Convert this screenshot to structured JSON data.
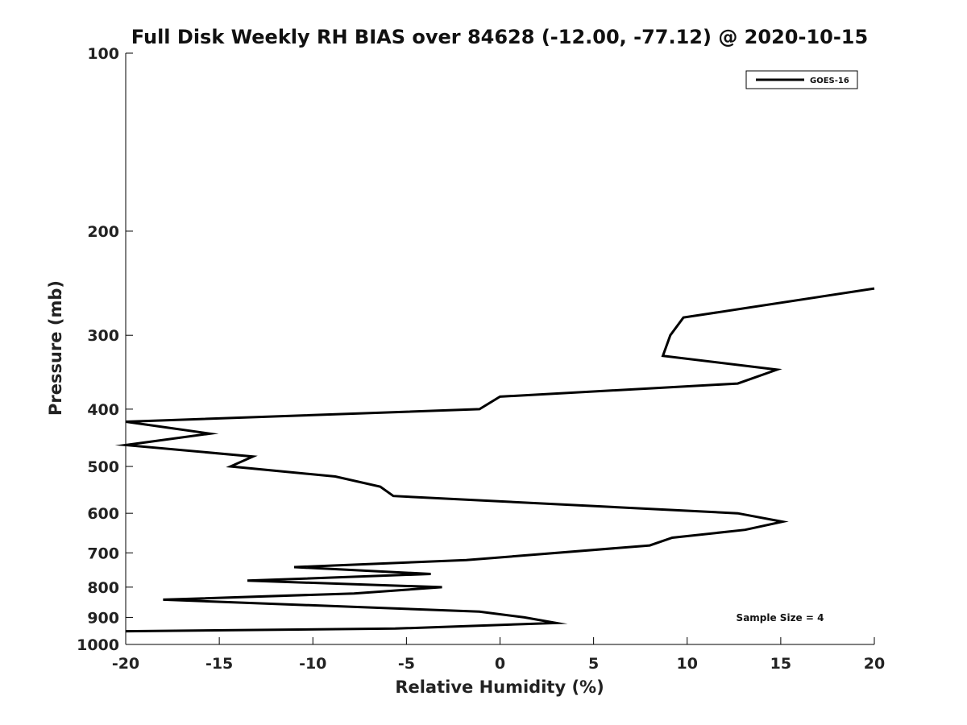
{
  "chart_data": {
    "type": "line",
    "title": "Full Disk Weekly RH BIAS over 84628 (-12.00, -77.12) @ 2020-10-15",
    "xlabel": "Relative Humidity (%)",
    "ylabel": "Pressure (mb)",
    "xlim": [
      -20,
      20
    ],
    "ylim": [
      100,
      1000
    ],
    "y_scale": "log",
    "y_reversed": true,
    "grid": false,
    "legend_position": "top-right",
    "x_ticks": [
      -20,
      -15,
      -10,
      -5,
      0,
      5,
      10,
      15,
      20
    ],
    "x_tick_labels": [
      "-20",
      "-15",
      "-10",
      "-5",
      "0",
      "5",
      "10",
      "15",
      "20"
    ],
    "y_ticks": [
      100,
      200,
      300,
      400,
      500,
      600,
      700,
      800,
      900,
      1000
    ],
    "y_tick_labels": [
      "100",
      "200",
      "300",
      "400",
      "500",
      "600",
      "700",
      "800",
      "900",
      "1000"
    ],
    "series": [
      {
        "name": "GOES-16",
        "color": "#000000",
        "points": [
          {
            "x": 20.0,
            "p": 250
          },
          {
            "x": 9.8,
            "p": 280
          },
          {
            "x": 9.1,
            "p": 300
          },
          {
            "x": 8.7,
            "p": 325
          },
          {
            "x": 14.8,
            "p": 343
          },
          {
            "x": 12.7,
            "p": 362
          },
          {
            "x": 0.0,
            "p": 381
          },
          {
            "x": -1.1,
            "p": 400
          },
          {
            "x": -20.0,
            "p": 420
          },
          {
            "x": -15.5,
            "p": 440
          },
          {
            "x": -20.0,
            "p": 460
          },
          {
            "x": -13.2,
            "p": 481
          },
          {
            "x": -14.4,
            "p": 500
          },
          {
            "x": -8.8,
            "p": 520
          },
          {
            "x": -6.4,
            "p": 541
          },
          {
            "x": -5.7,
            "p": 561
          },
          {
            "x": 12.7,
            "p": 600
          },
          {
            "x": 15.1,
            "p": 620
          },
          {
            "x": 13.1,
            "p": 640
          },
          {
            "x": 9.2,
            "p": 660
          },
          {
            "x": 8.0,
            "p": 680
          },
          {
            "x": -1.8,
            "p": 720
          },
          {
            "x": -11.0,
            "p": 740
          },
          {
            "x": -3.7,
            "p": 760
          },
          {
            "x": -13.5,
            "p": 780
          },
          {
            "x": -3.1,
            "p": 800
          },
          {
            "x": -7.8,
            "p": 820
          },
          {
            "x": -18.0,
            "p": 840
          },
          {
            "x": -1.1,
            "p": 880
          },
          {
            "x": 1.3,
            "p": 900
          },
          {
            "x": 3.0,
            "p": 920
          },
          {
            "x": -5.6,
            "p": 940
          },
          {
            "x": -20.0,
            "p": 950
          }
        ]
      }
    ],
    "annotations": [
      {
        "text": "Sample Size = 4"
      }
    ]
  }
}
